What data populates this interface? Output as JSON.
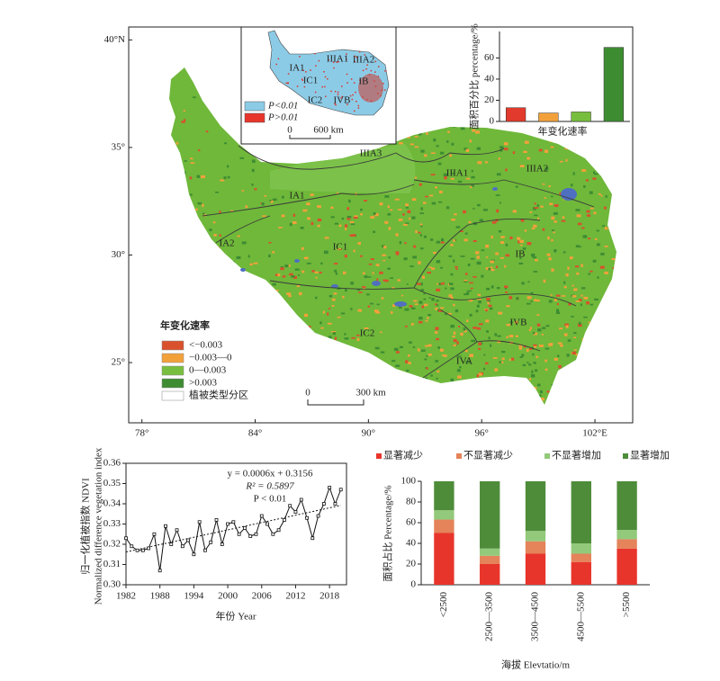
{
  "map": {
    "lonlim": [
      77.3,
      104.0
    ],
    "latlim": [
      22.2,
      40.6
    ],
    "lon_ticks": [
      {
        "value": 78,
        "label": "78°"
      },
      {
        "value": 84,
        "label": "84°"
      },
      {
        "value": 90,
        "label": "90°"
      },
      {
        "value": 96,
        "label": "96°"
      },
      {
        "value": 102,
        "label": "102°E"
      }
    ],
    "lat_ticks": [
      {
        "value": 25,
        "label": "25°"
      },
      {
        "value": 30,
        "label": "30°"
      },
      {
        "value": 35,
        "label": "35°"
      },
      {
        "value": 40,
        "label": "40°N"
      }
    ],
    "regions": [
      "IIIA3",
      "IIIA1",
      "IIIA2",
      "IA1",
      "IA2",
      "IC1",
      "IB",
      "IC2",
      "IVB",
      "IVA"
    ],
    "legend": {
      "title": "年变化速率",
      "items": [
        {
          "label": "<−0.003",
          "color": "#d9512c"
        },
        {
          "label": "−0.003—0",
          "color": "#f2a13a"
        },
        {
          "label": "0—0.003",
          "color": "#78be3e"
        },
        {
          "label": ">0.003",
          "color": "#3e8c32"
        },
        {
          "label": "植被类型分区",
          "color": "#ffffff"
        }
      ]
    },
    "scale": [
      "0",
      "300 km"
    ]
  },
  "inset_map": {
    "legend": [
      {
        "label": "P<0.01",
        "color": "#8ccbe6"
      },
      {
        "label": "P>0.01",
        "color": "#e8352c"
      }
    ],
    "scale": [
      "0",
      "600 km"
    ],
    "regions": [
      "IIIA1",
      "IIIA2",
      "IA1",
      "IC1",
      "IB",
      "IC2",
      "IVB"
    ]
  },
  "chart_data": [
    {
      "type": "bar",
      "ylabel": "面积百分比 percentage/%",
      "xlabel": "年变化速率",
      "categories": [
        null,
        null,
        null,
        null
      ],
      "values": [
        13,
        8,
        9,
        70
      ],
      "colors": [
        "#e23a2c",
        "#f2a13a",
        "#78be3e",
        "#3e8c32"
      ],
      "ylim": [
        0,
        85
      ],
      "yticks": [
        0,
        20,
        40,
        60
      ]
    },
    {
      "type": "line",
      "ylabel": "归一化植被指数 NDVI",
      "ylabel2": "Normalized difference vegetation index",
      "xlabel": "年份 Year",
      "annotations": [
        "y = 0.0006x + 0.3156",
        "R² = 0.5897",
        "P < 0.01"
      ],
      "x": [
        1982,
        1983,
        1984,
        1985,
        1986,
        1987,
        1988,
        1989,
        1990,
        1991,
        1992,
        1993,
        1994,
        1995,
        1996,
        1997,
        1998,
        1999,
        2000,
        2001,
        2002,
        2003,
        2004,
        2005,
        2006,
        2007,
        2008,
        2009,
        2010,
        2011,
        2012,
        2013,
        2014,
        2015,
        2016,
        2017,
        2018,
        2019,
        2020
      ],
      "series": [
        {
          "name": "NDVI",
          "color": "#111111",
          "values": [
            0.323,
            0.319,
            0.317,
            0.317,
            0.318,
            0.325,
            0.307,
            0.329,
            0.32,
            0.327,
            0.319,
            0.322,
            0.315,
            0.331,
            0.317,
            0.321,
            0.332,
            0.32,
            0.33,
            0.331,
            0.325,
            0.328,
            0.324,
            0.325,
            0.334,
            0.33,
            0.325,
            0.327,
            0.332,
            0.339,
            0.336,
            0.342,
            0.333,
            0.323,
            0.334,
            0.34,
            0.348,
            0.34,
            0.347
          ]
        }
      ],
      "trend": {
        "x": [
          1982,
          2020
        ],
        "values": [
          0.3162,
          0.3392
        ]
      },
      "xlim": [
        1982,
        2021
      ],
      "ylim": [
        0.3,
        0.36
      ],
      "xticks": [
        1982,
        1988,
        1994,
        2000,
        2006,
        2012,
        2018
      ],
      "yticks": [
        {
          "value": 0.3,
          "label": "0.30"
        },
        0.31,
        0.32,
        0.33,
        0.34,
        0.35,
        0.36
      ]
    },
    {
      "type": "stacked_bar",
      "ylabel": "面积占比 Percentage/%",
      "xlabel": "海拔 Elevtatio/m",
      "categories": [
        "<2500",
        "2500—3500",
        "3500—4500",
        "4500—5500",
        ">5500"
      ],
      "series": [
        {
          "name": "显著减少",
          "color": "#e8352c",
          "values": [
            50,
            20,
            30,
            22,
            35
          ]
        },
        {
          "name": "不显著减少",
          "color": "#e5835a",
          "values": [
            13,
            8,
            12,
            8,
            9
          ]
        },
        {
          "name": "不显著增加",
          "color": "#93c97a",
          "values": [
            9,
            7,
            10,
            10,
            9
          ]
        },
        {
          "name": "显著增加",
          "color": "#4e8c3a",
          "values": [
            28,
            65,
            48,
            60,
            47
          ]
        }
      ],
      "ylim": [
        0,
        100
      ],
      "yticks": [
        0,
        20,
        40,
        60,
        80,
        100
      ]
    }
  ]
}
